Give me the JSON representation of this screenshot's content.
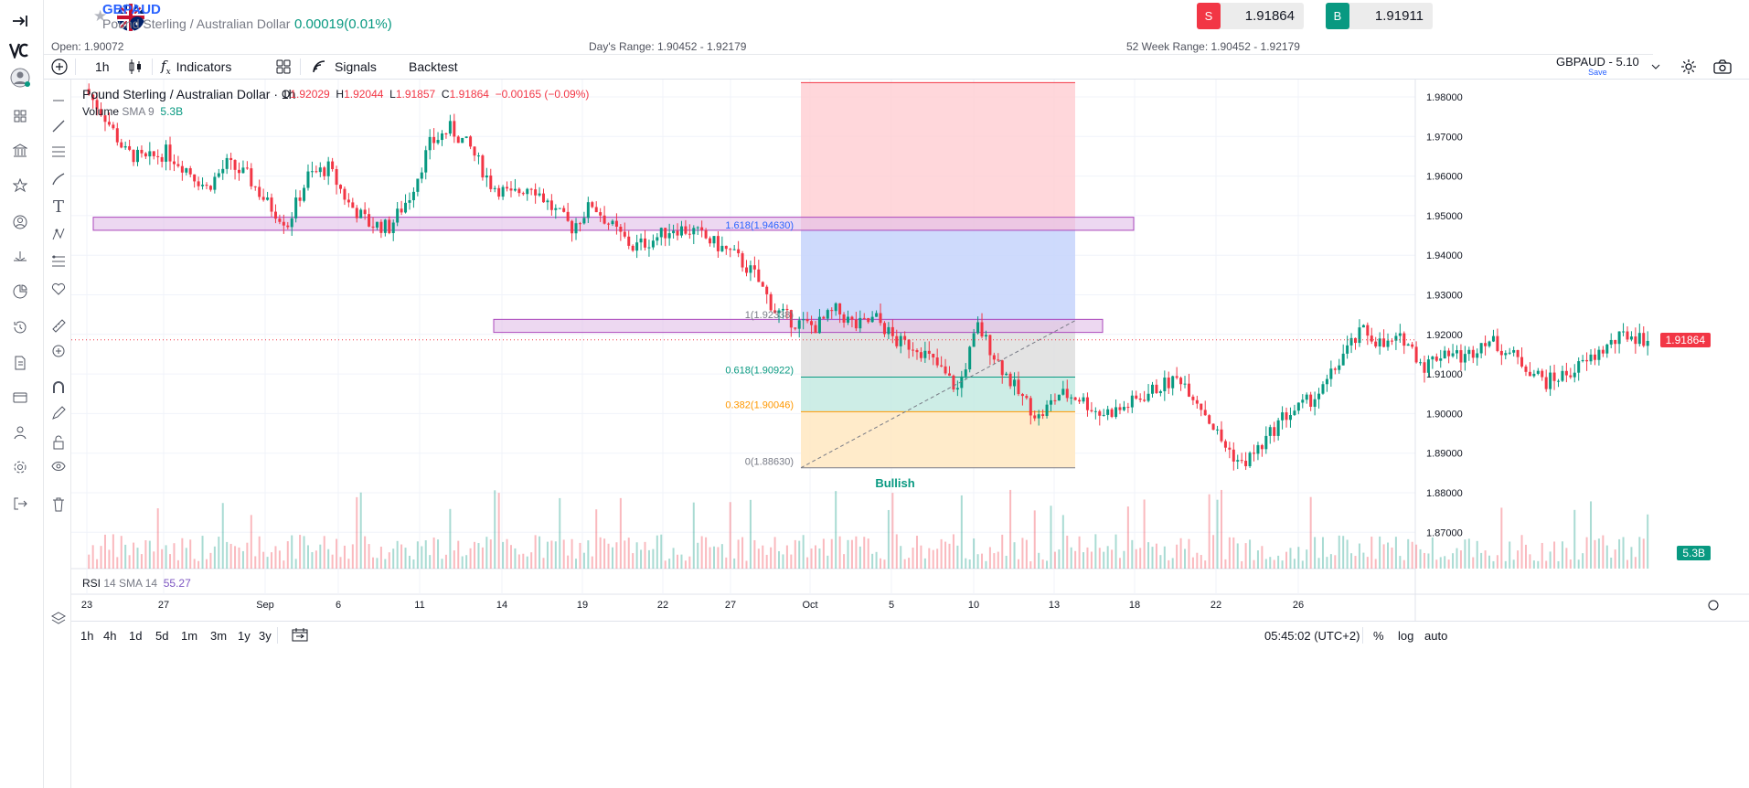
{
  "header": {
    "symbol": "GBPAUD",
    "symbol_name": "Pound Sterling / Australian Dollar",
    "change": "0.00019(0.01%)",
    "sell_tag": "S",
    "sell_price": "1.91864",
    "buy_tag": "B",
    "buy_price": "1.91911"
  },
  "stats": {
    "open": "Open: 1.90072",
    "days_range": "Day's Range: 1.90452 - 1.92179",
    "week52_range": "52 Week Range: 1.90452 - 1.92179"
  },
  "toolbar": {
    "interval": "1h",
    "indicators": "Indicators",
    "signals": "Signals",
    "backtest": "Backtest",
    "layout_name": "GBPAUD - 5.10",
    "save": "Save"
  },
  "legend": {
    "title": "Pound Sterling / Australian Dollar · 1h",
    "o_label": "O",
    "o_value": "1.92029",
    "h_label": "H",
    "h_value": "1.92044",
    "l_label": "L",
    "l_value": "1.91857",
    "c_label": "C",
    "c_value": "1.91864",
    "change": "−0.00165 (−0.09%)",
    "volume_label": "Volume",
    "volume_sub": "SMA 9",
    "volume_value": "5.3B",
    "rsi_label": "RSI",
    "rsi_sub": "14 SMA 14",
    "rsi_value": "55.27"
  },
  "annotations": {
    "fib_1618": "1.618(1.94630)",
    "fib_1": "1(1.92338)",
    "fib_0618": "0.618(1.90922)",
    "fib_0382": "0.382(1.90046)",
    "fib_0": "0(1.88630)",
    "bullish": "Bullish"
  },
  "price_tags": {
    "last": "1.91864",
    "volume": "5.3B"
  },
  "bottom": {
    "ranges": [
      "1h",
      "4h",
      "1d",
      "5d",
      "1m",
      "3m",
      "1y",
      "3y"
    ],
    "clock": "05:45:02 (UTC+2)",
    "percent": "%",
    "log": "log",
    "auto": "auto"
  },
  "colors": {
    "up": "#089981",
    "down": "#f23645",
    "accent": "#2962ff",
    "fib_zone": "#e1bee7"
  },
  "chart_data": {
    "type": "candlestick",
    "title": "Pound Sterling / Australian Dollar · 1h",
    "y_ticks": [
      "1.98000",
      "1.97000",
      "1.96000",
      "1.95000",
      "1.94000",
      "1.93000",
      "1.92000",
      "1.91000",
      "1.90000",
      "1.89000",
      "1.88000",
      "1.87000"
    ],
    "x_ticks": [
      "23",
      "27",
      "Sep",
      "6",
      "11",
      "14",
      "19",
      "22",
      "27",
      "Oct",
      "5",
      "10",
      "13",
      "18",
      "22",
      "26"
    ],
    "ylim": [
      1.862,
      1.985
    ],
    "grid": true,
    "price_path": [
      [
        23,
        1.982
      ],
      [
        24,
        1.975
      ],
      [
        25,
        1.966
      ],
      [
        26,
        1.964
      ],
      [
        27,
        1.966
      ],
      [
        28,
        1.962
      ],
      [
        29,
        1.957
      ],
      [
        30,
        1.963
      ],
      [
        31,
        1.96
      ],
      [
        32,
        1.953
      ],
      [
        33,
        1.948
      ],
      [
        34,
        1.96
      ],
      [
        35,
        1.962
      ],
      [
        36,
        1.953
      ],
      [
        37,
        1.948
      ],
      [
        38,
        1.947
      ],
      [
        39,
        1.955
      ],
      [
        40,
        1.968
      ],
      [
        41,
        1.972
      ],
      [
        42,
        1.967
      ],
      [
        43,
        1.958
      ],
      [
        44,
        1.955
      ],
      [
        45,
        1.958
      ],
      [
        46,
        1.952
      ],
      [
        47,
        1.947
      ],
      [
        48,
        1.953
      ],
      [
        49,
        1.947
      ],
      [
        50,
        1.942
      ],
      [
        51,
        1.944
      ],
      [
        52,
        1.947
      ],
      [
        53,
        1.946
      ],
      [
        54,
        1.943
      ],
      [
        55,
        1.94
      ],
      [
        56,
        1.935
      ],
      [
        57,
        1.926
      ],
      [
        58,
        1.923
      ],
      [
        59,
        1.922
      ],
      [
        60,
        1.926
      ],
      [
        61,
        1.922
      ],
      [
        62,
        1.924
      ],
      [
        63,
        1.918
      ],
      [
        64,
        1.917
      ],
      [
        65,
        1.912
      ],
      [
        66,
        1.906
      ],
      [
        67,
        1.922
      ],
      [
        68,
        1.913
      ],
      [
        69,
        1.905
      ],
      [
        70,
        1.899
      ],
      [
        71,
        1.905
      ],
      [
        72,
        1.904
      ],
      [
        73,
        1.9
      ],
      [
        74,
        1.901
      ],
      [
        75,
        1.904
      ],
      [
        76,
        1.907
      ],
      [
        77,
        1.909
      ],
      [
        78,
        1.902
      ],
      [
        79,
        1.893
      ],
      [
        80,
        1.887
      ],
      [
        81,
        1.892
      ],
      [
        82,
        1.899
      ],
      [
        83,
        1.902
      ],
      [
        84,
        1.906
      ],
      [
        85,
        1.915
      ],
      [
        86,
        1.921
      ],
      [
        87,
        1.917
      ],
      [
        88,
        1.919
      ],
      [
        89,
        1.912
      ],
      [
        90,
        1.916
      ],
      [
        91,
        1.914
      ],
      [
        92,
        1.919
      ],
      [
        93,
        1.916
      ],
      [
        94,
        1.912
      ],
      [
        95,
        1.908
      ],
      [
        96,
        1.91
      ],
      [
        97,
        1.913
      ],
      [
        98,
        1.917
      ],
      [
        99,
        1.92
      ],
      [
        100,
        1.9186
      ]
    ],
    "volume_max": 1
  }
}
